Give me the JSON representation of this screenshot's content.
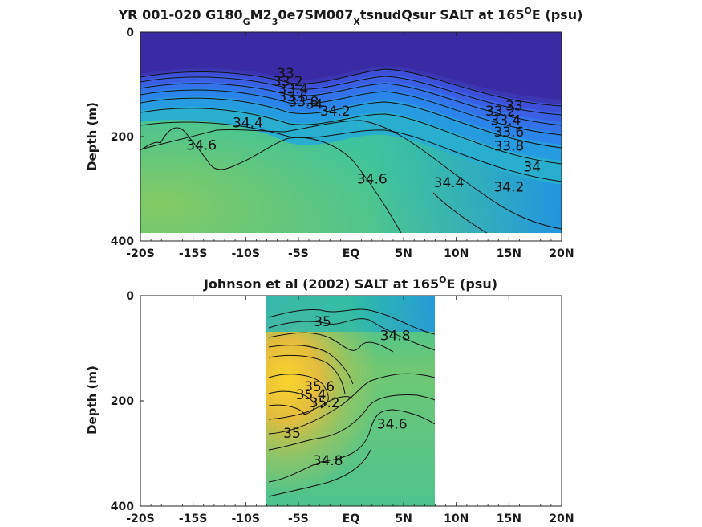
{
  "chart_data": [
    {
      "type": "heatmap",
      "title": {
        "main": "YR 001-020 G180",
        "sub1": "G",
        "mid1": "M2",
        "sub2": "3",
        "mid2": "0e7SM007",
        "sub3": "X",
        "end": "tsnudQsur SALT at 165",
        "sup": "O",
        "unit": "E (psu)"
      },
      "ylabel": "Depth (m)",
      "xlim": [
        -20,
        20
      ],
      "ylim": [
        0,
        400
      ],
      "y_reversed": true,
      "x_ticks": [
        -20,
        -15,
        -10,
        -5,
        0,
        5,
        10,
        15,
        20
      ],
      "x_tick_labels": [
        "-20S",
        "-15S",
        "-10S",
        "-5S",
        "EQ",
        "5N",
        "10N",
        "15N",
        "20N"
      ],
      "y_ticks": [
        0,
        200,
        400
      ],
      "y_tick_labels": [
        "0",
        "200",
        "400"
      ],
      "data_x_range": [
        -20,
        20
      ],
      "data_depth_range": [
        0,
        380
      ],
      "contour_labels": [
        {
          "text": "33",
          "x": -6.2,
          "y": 88
        },
        {
          "text": "33.2",
          "x": -6.0,
          "y": 103
        },
        {
          "text": "33.4",
          "x": -5.5,
          "y": 118
        },
        {
          "text": "33.6",
          "x": -5.5,
          "y": 132
        },
        {
          "text": "33.8",
          "x": -4.5,
          "y": 142
        },
        {
          "text": "34",
          "x": -3.5,
          "y": 147
        },
        {
          "text": "34.2",
          "x": -1.5,
          "y": 160
        },
        {
          "text": "34.4",
          "x": -9.8,
          "y": 182
        },
        {
          "text": "34.6",
          "x": -14.2,
          "y": 225
        },
        {
          "text": "34.6",
          "x": 2.0,
          "y": 290
        },
        {
          "text": "34.4",
          "x": 9.3,
          "y": 297
        },
        {
          "text": "33",
          "x": 15.5,
          "y": 150
        },
        {
          "text": "33.2",
          "x": 14.2,
          "y": 160
        },
        {
          "text": "33.4",
          "x": 14.7,
          "y": 178
        },
        {
          "text": "33.6",
          "x": 15.0,
          "y": 200
        },
        {
          "text": "33.8",
          "x": 15.0,
          "y": 227
        },
        {
          "text": "34",
          "x": 17.2,
          "y": 267
        },
        {
          "text": "34.2",
          "x": 15.0,
          "y": 305
        }
      ]
    },
    {
      "type": "heatmap",
      "title": {
        "main": "Johnson et al (2002) SALT at 165",
        "sup": "O",
        "unit": "E (psu)"
      },
      "ylabel": "Depth (m)",
      "xlim": [
        -20,
        20
      ],
      "ylim": [
        0,
        400
      ],
      "y_reversed": true,
      "x_ticks": [
        -20,
        -15,
        -10,
        -5,
        0,
        5,
        10,
        15,
        20
      ],
      "x_tick_labels": [
        "-20S",
        "-15S",
        "-10S",
        "-5S",
        "EQ",
        "5N",
        "10N",
        "15N",
        "20N"
      ],
      "y_ticks": [
        0,
        200,
        400
      ],
      "y_tick_labels": [
        "0",
        "200",
        "400"
      ],
      "data_x_range": [
        -8,
        8
      ],
      "data_depth_range": [
        0,
        400
      ],
      "contour_labels": [
        {
          "text": "35",
          "x": -2.7,
          "y": 58
        },
        {
          "text": "34.8",
          "x": 4.2,
          "y": 85
        },
        {
          "text": "35.6",
          "x": -3.0,
          "y": 182
        },
        {
          "text": "35.4",
          "x": -3.8,
          "y": 197
        },
        {
          "text": "35.2",
          "x": -2.5,
          "y": 212
        },
        {
          "text": "34.6",
          "x": 3.9,
          "y": 253
        },
        {
          "text": "35",
          "x": -5.6,
          "y": 270
        },
        {
          "text": "34.8",
          "x": -2.2,
          "y": 322
        }
      ]
    }
  ]
}
